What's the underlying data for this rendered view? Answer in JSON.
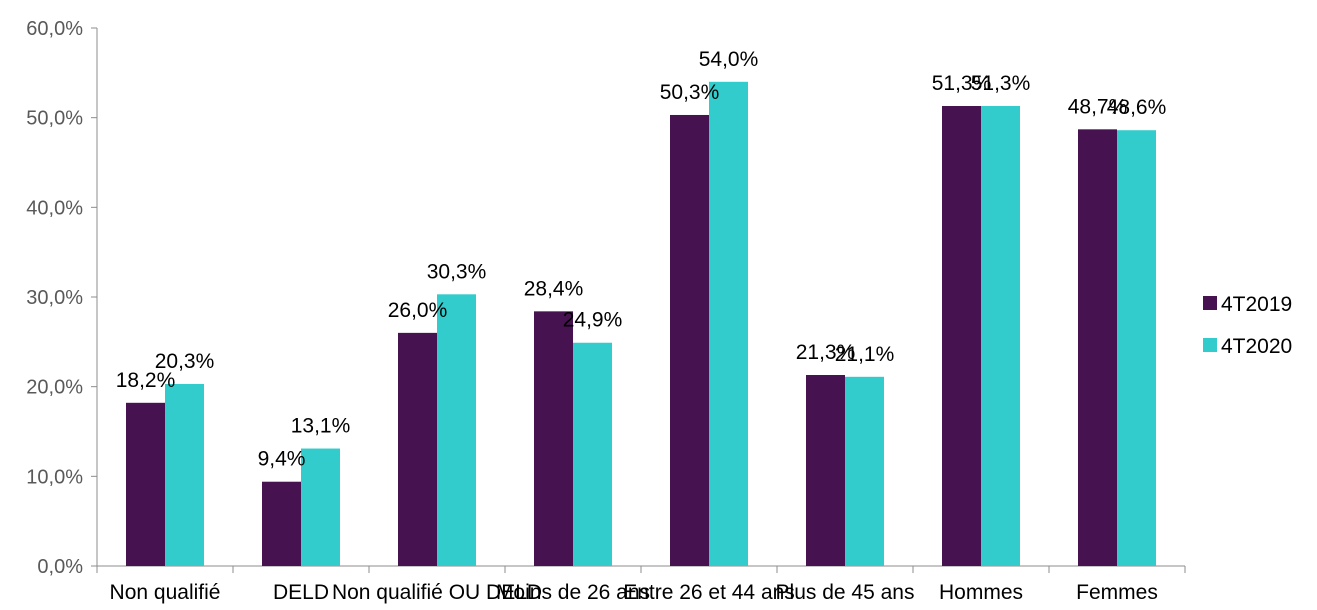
{
  "chart_data": {
    "type": "bar",
    "categories": [
      "Non qualifié",
      "DELD",
      "Non qualifié OU DELD",
      "Moins de 26 ans",
      "Entre 26 et 44 ans",
      "Plus de 45 ans",
      "Hommes",
      "Femmes"
    ],
    "series": [
      {
        "name": "4T2019",
        "color": "#46124f",
        "values": [
          18.2,
          9.4,
          26.0,
          28.4,
          50.3,
          21.3,
          51.3,
          48.7
        ],
        "labels": [
          "18,2%",
          "9,4%",
          "26,0%",
          "28,4%",
          "50,3%",
          "21,3%",
          "51,3%",
          "48,7%"
        ]
      },
      {
        "name": "4T2020",
        "color": "#33cccc",
        "values": [
          20.3,
          13.1,
          30.3,
          24.9,
          54.0,
          21.1,
          51.3,
          48.6
        ],
        "labels": [
          "20,3%",
          "13,1%",
          "30,3%",
          "24,9%",
          "54,0%",
          "21,1%",
          "51,3%",
          "48,6%"
        ]
      }
    ],
    "ylim": [
      0,
      60
    ],
    "yticks": [
      0,
      10,
      20,
      30,
      40,
      50,
      60
    ],
    "ytick_labels": [
      "0,0%",
      "10,0%",
      "20,0%",
      "30,0%",
      "40,0%",
      "50,0%",
      "60,0%"
    ],
    "title": "",
    "xlabel": "",
    "ylabel": "",
    "grid": false,
    "legend_position": "right"
  }
}
